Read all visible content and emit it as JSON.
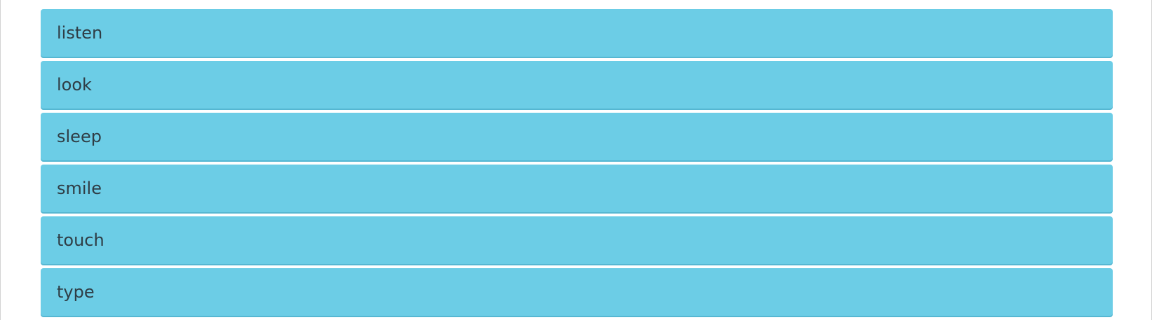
{
  "options": {
    "items": [
      {
        "label": "listen"
      },
      {
        "label": "look"
      },
      {
        "label": "sleep"
      },
      {
        "label": "smile"
      },
      {
        "label": "touch"
      },
      {
        "label": "type"
      }
    ]
  },
  "colors": {
    "item_background": "#6ccde6",
    "item_shadow": "#56b7d2",
    "item_text": "#2f3d45"
  }
}
